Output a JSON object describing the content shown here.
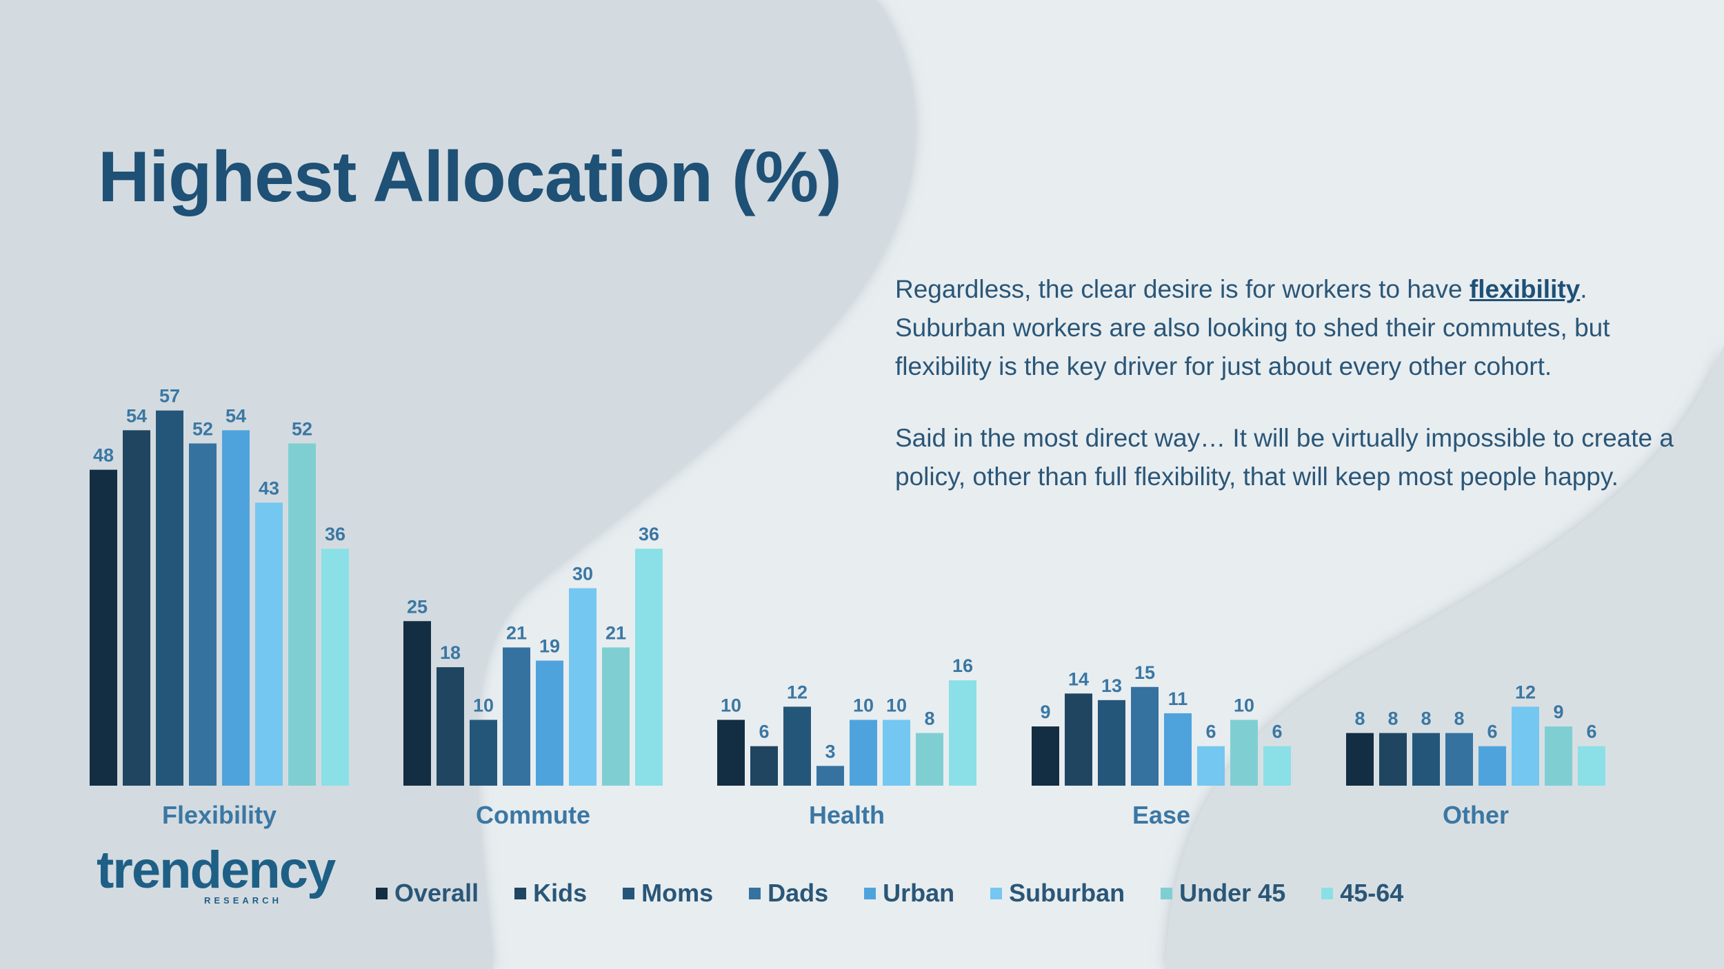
{
  "title": "Highest Allocation (%)",
  "text": {
    "p1_before": "Regardless, the clear desire is for workers to have ",
    "p1_emph": "flexibility",
    "p1_after": ". Suburban workers are also looking to shed their commutes, but flexibility is the key driver for just about every other cohort.",
    "p2": "Said in the most direct way… It will be virtually impossible to create a policy, other than full flexibility, that will keep most people happy."
  },
  "logo": {
    "word": "trendency",
    "sub": "RESEARCH"
  },
  "chart_data": {
    "type": "bar",
    "categories": [
      "Flexibility",
      "Commute",
      "Health",
      "Ease",
      "Other"
    ],
    "series": [
      {
        "name": "Overall",
        "color": "#132d42",
        "values": [
          48,
          25,
          10,
          9,
          8
        ]
      },
      {
        "name": "Kids",
        "color": "#1f4560",
        "values": [
          54,
          18,
          6,
          14,
          8
        ]
      },
      {
        "name": "Moms",
        "color": "#245679",
        "values": [
          57,
          10,
          12,
          13,
          8
        ]
      },
      {
        "name": "Dads",
        "color": "#3572a0",
        "values": [
          52,
          21,
          3,
          15,
          8
        ]
      },
      {
        "name": "Urban",
        "color": "#4fa3dc",
        "values": [
          54,
          19,
          10,
          11,
          6
        ]
      },
      {
        "name": "Suburban",
        "color": "#74c7f0",
        "values": [
          43,
          30,
          10,
          6,
          12
        ]
      },
      {
        "name": "Under 45",
        "color": "#7fcfd2",
        "values": [
          52,
          21,
          8,
          10,
          9
        ]
      },
      {
        "name": "45-64",
        "color": "#8ae0e6",
        "values": [
          36,
          36,
          16,
          6,
          6
        ]
      }
    ],
    "ylim": [
      0,
      60
    ],
    "legend": "bottom",
    "grid": false,
    "data_labels": true
  }
}
